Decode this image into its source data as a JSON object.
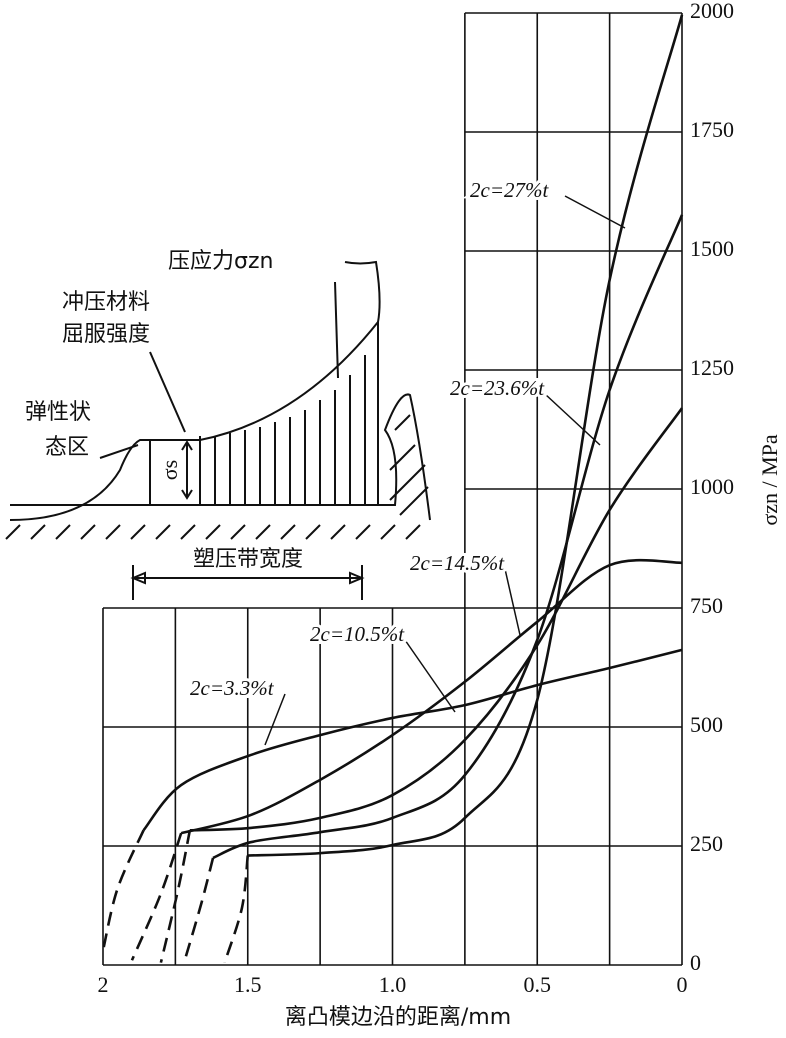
{
  "chart_data": {
    "type": "line",
    "xlabel": "离凸模边沿的距离/mm",
    "ylabel": "σzn / MPa",
    "xlim": [
      2,
      0
    ],
    "ylim": [
      0,
      2000
    ],
    "xticks": [
      2,
      {
        "value": 1.5,
        "label": "1.5"
      },
      {
        "value": 1,
        "label": "1.0"
      },
      {
        "value": 0.5,
        "label": "0.5"
      },
      0
    ],
    "x_minor_grid": [
      1.75,
      1.25,
      0.75,
      0.25
    ],
    "yticks": [
      0,
      250,
      500,
      750,
      1000,
      1250,
      1500,
      1750,
      2000
    ],
    "grid": true,
    "series": [
      {
        "name": "2c=27%t",
        "color": "#111111",
        "x": [
          1.5,
          1.25,
          1.0,
          0.75,
          0.5,
          0.25,
          0
        ],
        "values": [
          230,
          235,
          252,
          309,
          557,
          1439,
          1996
        ],
        "dash_x": [
          1.5,
          1.52,
          1.58
        ],
        "dash_values": [
          230,
          120,
          5
        ]
      },
      {
        "name": "2c=23.6%t",
        "color": "#111111",
        "x": [
          1.62,
          1.49,
          1.25,
          1.0,
          0.75,
          0.5,
          0.25,
          0
        ],
        "values": [
          225,
          258,
          279,
          309,
          399,
          683,
          1208,
          1576
        ],
        "dash_x": [
          1.62,
          1.66,
          1.72
        ],
        "dash_values": [
          225,
          130,
          5
        ]
      },
      {
        "name": "2c=14.5%t",
        "color": "#111111",
        "x": [
          1.7,
          1.49,
          1.25,
          1.0,
          0.75,
          0.5,
          0.25,
          0
        ],
        "values": [
          283,
          288,
          309,
          357,
          473,
          672,
          956,
          1170
        ],
        "dash_x": [
          1.7,
          1.74,
          1.8
        ],
        "dash_values": [
          283,
          160,
          5
        ]
      },
      {
        "name": "2c=10.5%t",
        "color": "#111111",
        "x": [
          1.73,
          1.49,
          1.25,
          1.0,
          0.75,
          0.5,
          0.25,
          0
        ],
        "values": [
          277,
          315,
          389,
          483,
          595,
          721,
          840,
          845
        ],
        "dash_x": [
          1.73,
          1.8,
          1.9
        ],
        "dash_values": [
          277,
          150,
          10
        ]
      },
      {
        "name": "2c=3.3%t",
        "color": "#111111",
        "x": [
          1.86,
          1.73,
          1.49,
          1.25,
          1.0,
          0.75,
          0.5,
          0.25,
          0
        ],
        "values": [
          283,
          378,
          441,
          483,
          519,
          546,
          588,
          624,
          662
        ],
        "dash_x": [
          1.86,
          1.95,
          2.0
        ],
        "dash_values": [
          283,
          160,
          30
        ]
      }
    ],
    "inset": {
      "stress": "压应力σzn",
      "yield_1": "冲压材料",
      "yield_2": "屈服强度",
      "elastic_1": "弹性状",
      "elastic_2": "态区",
      "sigma_s": "σs",
      "width": "塑压带宽度"
    }
  }
}
